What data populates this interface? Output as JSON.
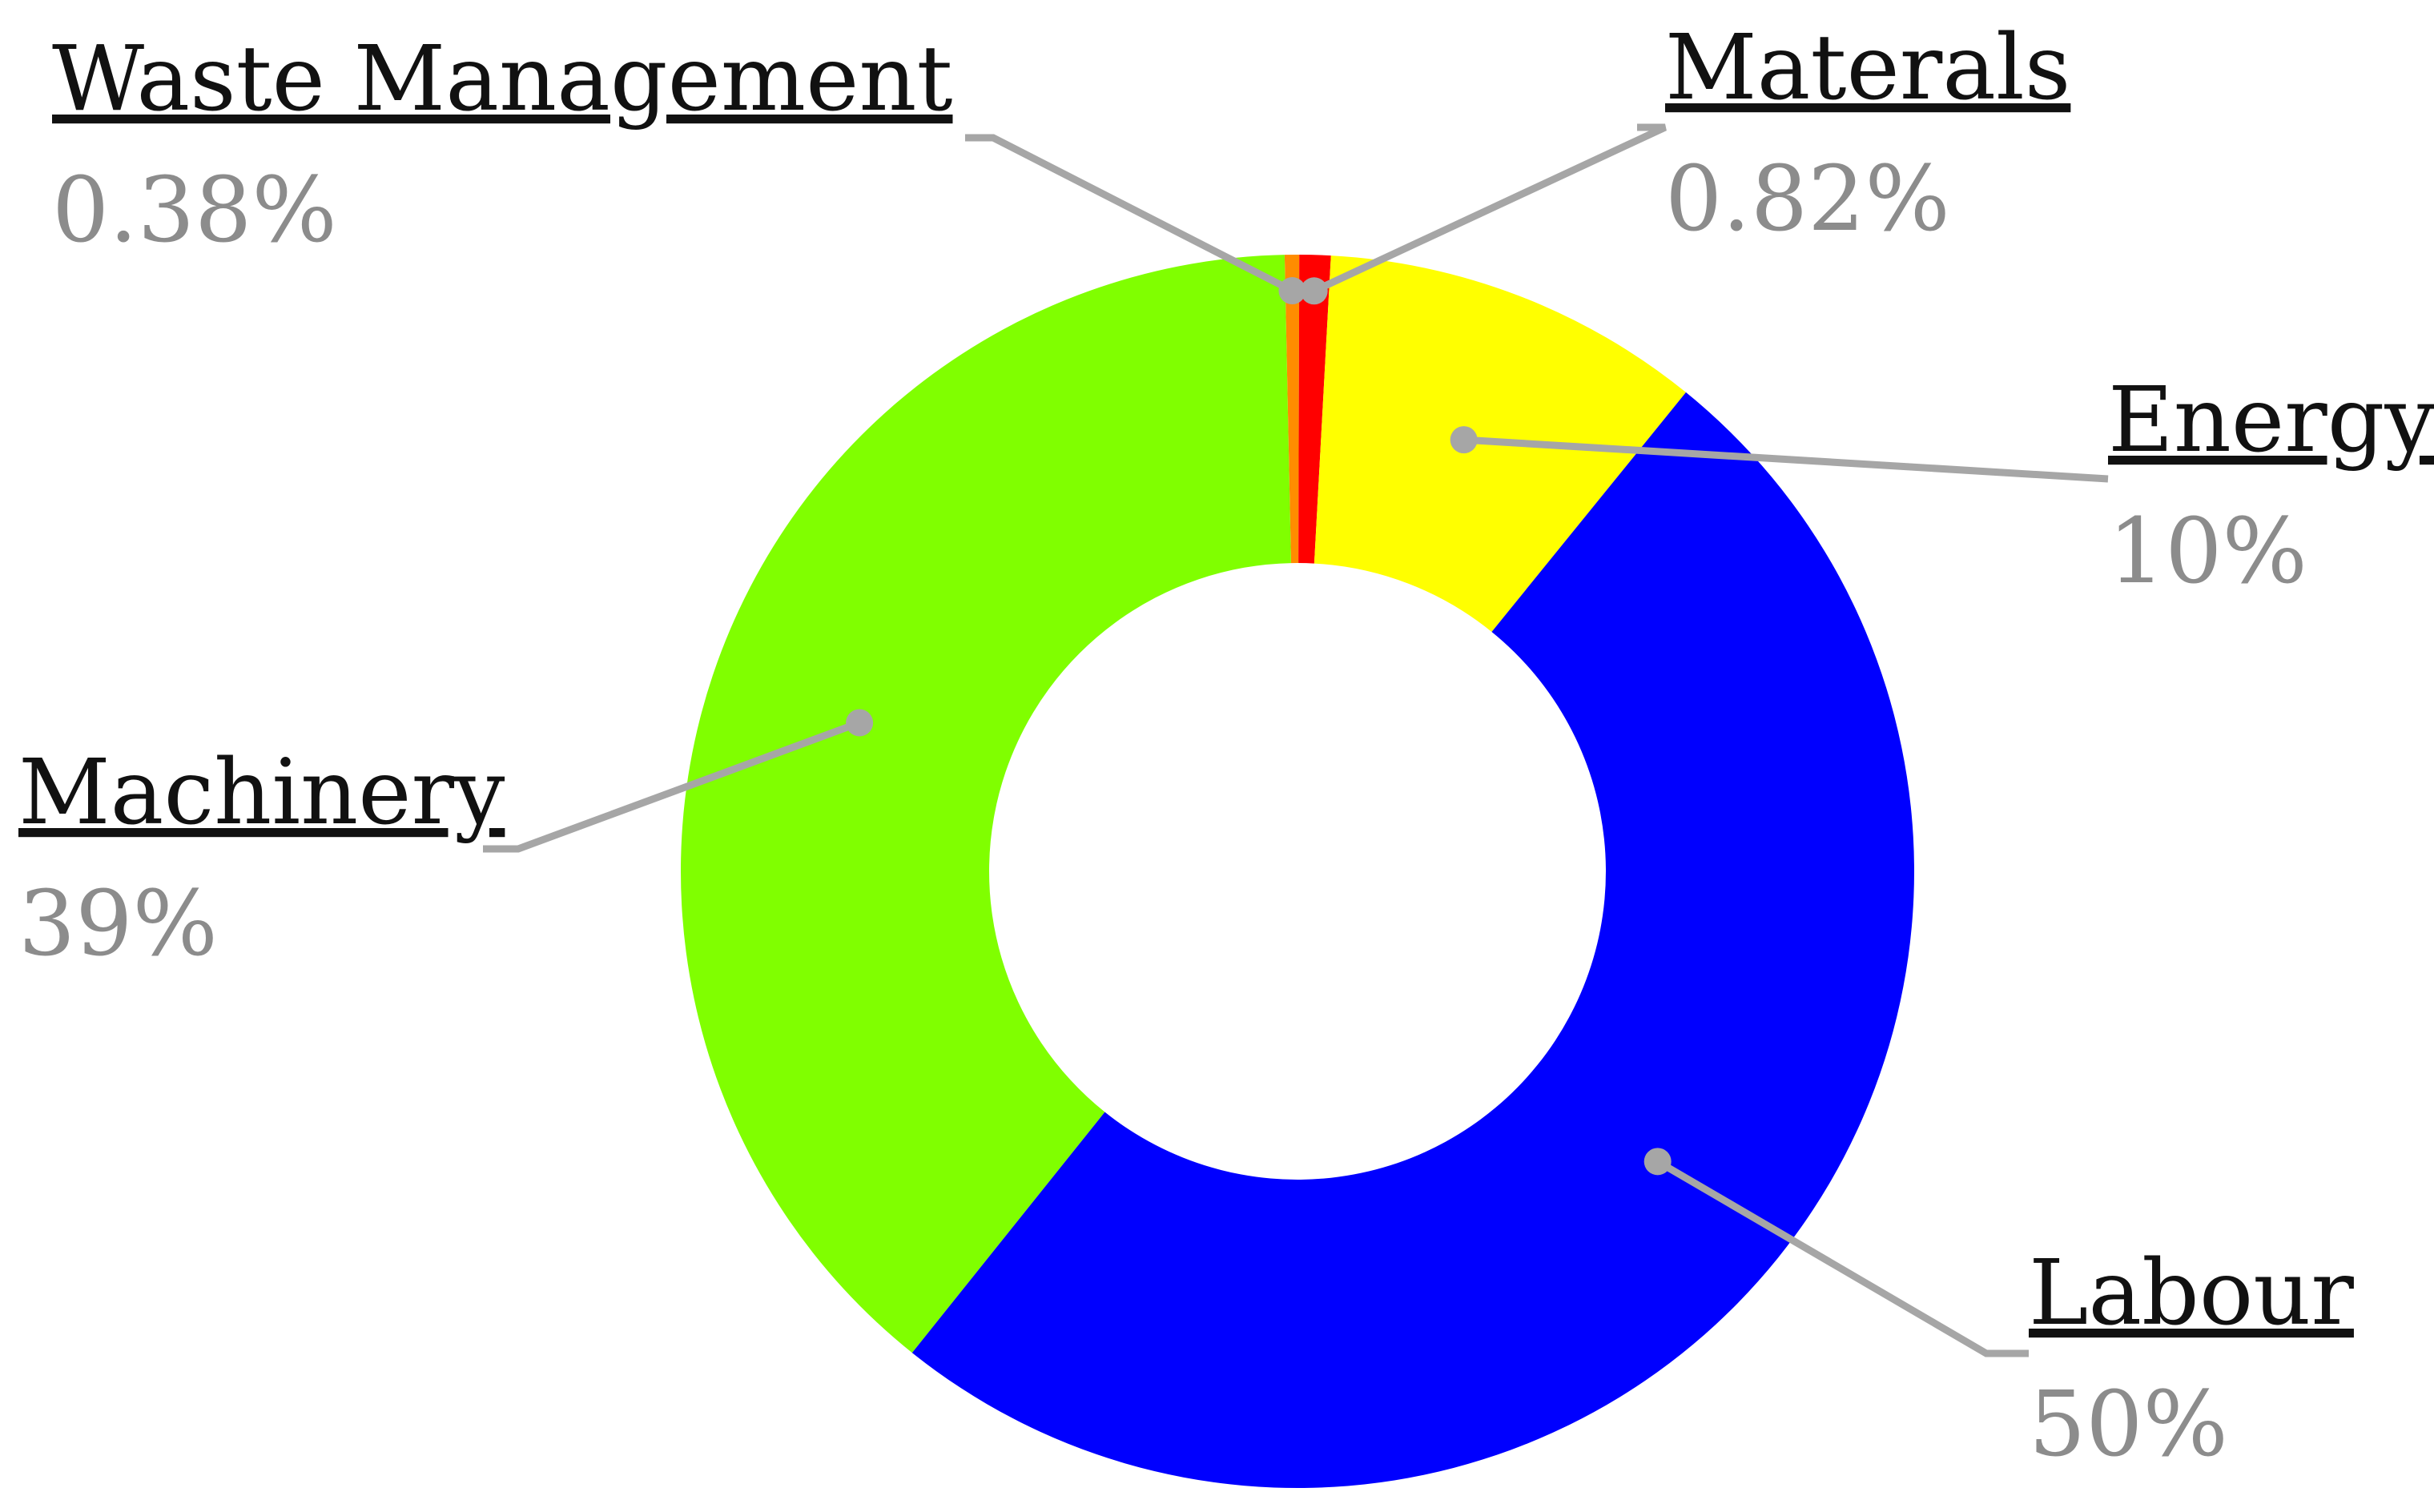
{
  "chart_data": {
    "type": "donut",
    "slices": [
      {
        "label": "Waste Management",
        "value": 0.38,
        "value_label": "0.38%",
        "color": "#ff8c00"
      },
      {
        "label": "Materals",
        "value": 0.82,
        "value_label": "0.82%",
        "color": "#ff0000"
      },
      {
        "label": "Energy",
        "value": 10,
        "value_label": "10%",
        "color": "#ffff00"
      },
      {
        "label": "Labour",
        "value": 50,
        "value_label": "50%",
        "color": "#0000ff"
      },
      {
        "label": "Machinery",
        "value": 39,
        "value_label": "39%",
        "color": "#80ff00"
      }
    ],
    "start_angle_deg": -1.2,
    "leader_line_color": "#a6a6a6",
    "label_name_color": "#111111",
    "label_value_color": "#8c8c8c"
  }
}
